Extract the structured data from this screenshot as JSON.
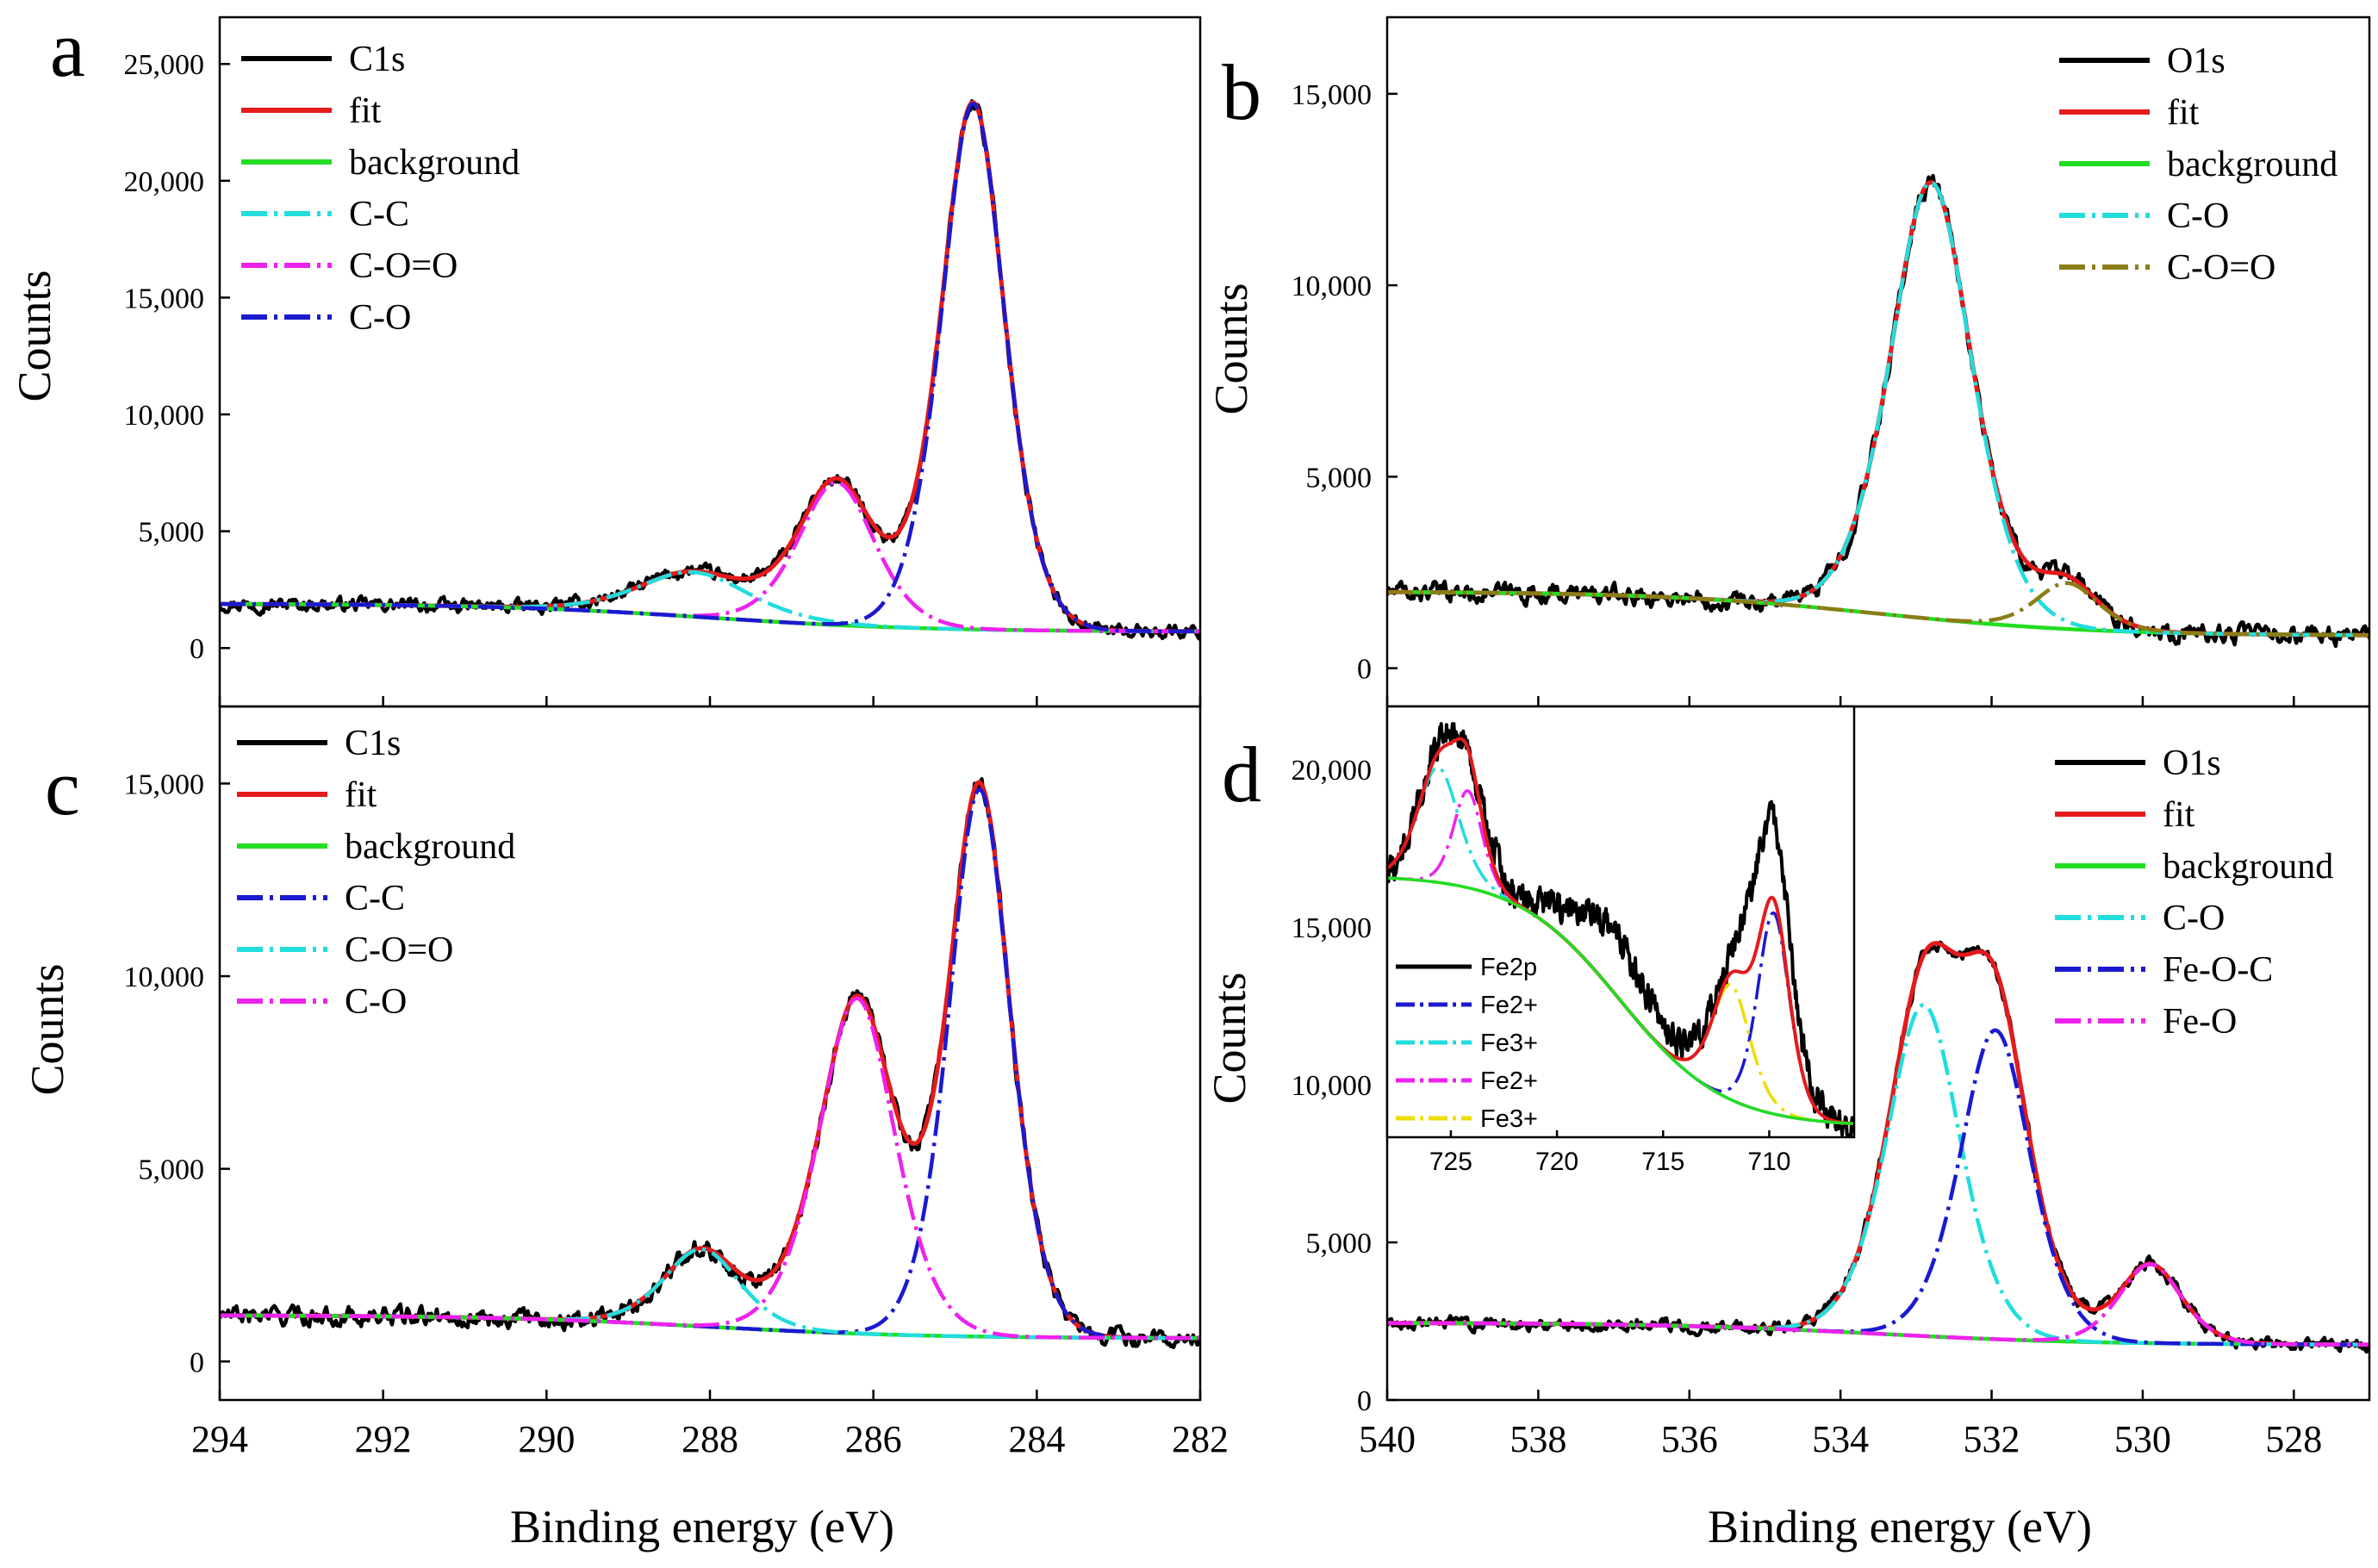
{
  "figure": {
    "x_axis_label": "Binding energy (eV)",
    "y_axis_label": "Counts"
  },
  "chart_data": [
    {
      "panel": "a",
      "type": "line",
      "xlabel": "",
      "ylabel": "Counts",
      "xlim": [
        294,
        282
      ],
      "ylim": [
        -2500,
        27000
      ],
      "x_ticks": [
        294,
        292,
        290,
        288,
        286,
        284,
        282
      ],
      "y_ticks": [
        0,
        5000,
        10000,
        15000,
        20000,
        25000
      ],
      "y_tick_labels": [
        "0",
        "5,000",
        "10,000",
        "15,000",
        "20,000",
        "25,000"
      ],
      "legend_position": "top-left",
      "series": [
        {
          "name": "C1s",
          "color": "#000000",
          "dash": "solid",
          "kind": "data",
          "base": [
            294,
            1900,
            282,
            700
          ],
          "noise": 280,
          "peaks": [
            [
              284.78,
              22500,
              0.52
            ],
            [
              286.45,
              6100,
              0.62
            ],
            [
              288.2,
              1900,
              0.9
            ]
          ]
        },
        {
          "name": "fit",
          "color": "#e41a1c",
          "dash": "solid",
          "kind": "fit",
          "base": [
            294,
            1900,
            282,
            700
          ],
          "peaks": [
            [
              284.78,
              22500,
              0.52
            ],
            [
              286.45,
              6100,
              0.62
            ],
            [
              288.2,
              1900,
              0.9
            ]
          ]
        },
        {
          "name": "background",
          "color": "#22dd22",
          "dash": "solid",
          "kind": "bg",
          "base": [
            294,
            1900,
            282,
            700
          ],
          "peaks": []
        },
        {
          "name": "C-C",
          "color": "#22dddd",
          "dash": "dashdot",
          "kind": "comp",
          "base": [
            294,
            1900,
            282,
            700
          ],
          "peaks": [
            [
              288.2,
              1900,
              0.9
            ]
          ]
        },
        {
          "name": "C-O=O",
          "color": "#ee22ee",
          "dash": "dashdot",
          "kind": "comp",
          "base": [
            294,
            1900,
            282,
            700
          ],
          "peaks": [
            [
              286.45,
              6100,
              0.62
            ]
          ]
        },
        {
          "name": "C-O",
          "color": "#1a1ad0",
          "dash": "dashdot",
          "kind": "comp",
          "base": [
            294,
            1900,
            282,
            700
          ],
          "peaks": [
            [
              284.78,
              22500,
              0.52
            ]
          ]
        }
      ]
    },
    {
      "panel": "b",
      "type": "line",
      "xlabel": "",
      "ylabel": "Counts",
      "xlim": [
        540,
        527
      ],
      "ylim": [
        -1000,
        17000
      ],
      "x_ticks": [
        540,
        538,
        536,
        534,
        532,
        530,
        528
      ],
      "y_ticks": [
        0,
        5000,
        10000,
        15000
      ],
      "y_tick_labels": [
        "0",
        "5,000",
        "10,000",
        "15,000"
      ],
      "legend_position": "top-right",
      "series": [
        {
          "name": "O1s",
          "color": "#000000",
          "dash": "solid",
          "kind": "data",
          "base": [
            540,
            2000,
            527,
            850
          ],
          "noise": 240,
          "peaks": [
            [
              532.8,
              11400,
              0.72
            ],
            [
              531.0,
              1200,
              0.55
            ]
          ]
        },
        {
          "name": "fit",
          "color": "#e41a1c",
          "dash": "solid",
          "kind": "fit",
          "base": [
            540,
            2000,
            527,
            850
          ],
          "peaks": [
            [
              532.8,
              11400,
              0.72
            ],
            [
              531.0,
              1200,
              0.55
            ]
          ]
        },
        {
          "name": "background",
          "color": "#22dd22",
          "dash": "solid",
          "kind": "bg",
          "base": [
            540,
            2000,
            527,
            850
          ],
          "peaks": []
        },
        {
          "name": "C-O",
          "color": "#22dddd",
          "dash": "dashdot",
          "kind": "comp",
          "base": [
            540,
            2000,
            527,
            850
          ],
          "peaks": [
            [
              532.8,
              11400,
              0.72
            ]
          ]
        },
        {
          "name": "C-O=O",
          "color": "#8b7d17",
          "dash": "dashdot",
          "kind": "comp",
          "base": [
            540,
            2000,
            527,
            850
          ],
          "peaks": [
            [
              531.0,
              1200,
              0.55
            ]
          ]
        }
      ]
    },
    {
      "panel": "c",
      "type": "line",
      "xlabel": "Binding energy (eV)",
      "ylabel": "Counts",
      "xlim": [
        294,
        282
      ],
      "ylim": [
        -1000,
        17000
      ],
      "x_ticks": [
        294,
        292,
        290,
        288,
        286,
        284,
        282
      ],
      "y_ticks": [
        0,
        5000,
        10000,
        15000
      ],
      "y_tick_labels": [
        "0",
        "5,000",
        "10,000",
        "15,000"
      ],
      "legend_position": "top-left",
      "series": [
        {
          "name": "C1s",
          "color": "#000000",
          "dash": "solid",
          "kind": "data",
          "base": [
            294,
            1200,
            282,
            600
          ],
          "noise": 230,
          "peaks": [
            [
              284.7,
              14200,
              0.5
            ],
            [
              286.2,
              8700,
              0.62
            ],
            [
              288.1,
              2000,
              0.62
            ]
          ]
        },
        {
          "name": "fit",
          "color": "#e41a1c",
          "dash": "solid",
          "kind": "fit",
          "base": [
            294,
            1200,
            282,
            600
          ],
          "peaks": [
            [
              284.7,
              14200,
              0.5
            ],
            [
              286.2,
              8700,
              0.62
            ],
            [
              288.1,
              2000,
              0.62
            ]
          ]
        },
        {
          "name": "background",
          "color": "#22dd22",
          "dash": "solid",
          "kind": "bg",
          "base": [
            294,
            1200,
            282,
            600
          ],
          "peaks": []
        },
        {
          "name": "C-C",
          "color": "#1a1ad0",
          "dash": "dashdot",
          "kind": "comp",
          "base": [
            294,
            1200,
            282,
            600
          ],
          "peaks": [
            [
              284.7,
              14200,
              0.5
            ]
          ]
        },
        {
          "name": "C-O=O",
          "color": "#22dddd",
          "dash": "dashdot",
          "kind": "comp",
          "base": [
            294,
            1200,
            282,
            600
          ],
          "peaks": [
            [
              288.1,
              2000,
              0.62
            ]
          ]
        },
        {
          "name": "C-O",
          "color": "#ee22ee",
          "dash": "dashdot",
          "kind": "comp",
          "base": [
            294,
            1200,
            282,
            600
          ],
          "peaks": [
            [
              286.2,
              8700,
              0.62
            ]
          ]
        }
      ]
    },
    {
      "panel": "d",
      "type": "line",
      "xlabel": "Binding energy (eV)",
      "ylabel": "Counts",
      "xlim": [
        540,
        527
      ],
      "ylim": [
        0,
        22000
      ],
      "x_ticks": [
        540,
        538,
        536,
        534,
        532,
        530,
        528
      ],
      "y_ticks": [
        0,
        5000,
        10000,
        15000,
        20000
      ],
      "y_tick_labels": [
        "0",
        "5,000",
        "10,000",
        "15,000",
        "20,000"
      ],
      "legend_position": "top-right",
      "series": [
        {
          "name": "O1s",
          "color": "#000000",
          "dash": "solid",
          "kind": "data",
          "base": [
            540,
            2450,
            527,
            1750
          ],
          "noise": 200,
          "peaks": [
            [
              532.9,
              10500,
              0.65
            ],
            [
              531.95,
              9800,
              0.62
            ],
            [
              529.9,
              2500,
              0.55
            ]
          ]
        },
        {
          "name": "fit",
          "color": "#e41a1c",
          "dash": "solid",
          "kind": "fit",
          "base": [
            540,
            2450,
            527,
            1750
          ],
          "peaks": [
            [
              532.9,
              10500,
              0.65
            ],
            [
              531.95,
              9800,
              0.62
            ],
            [
              529.9,
              2500,
              0.55
            ]
          ]
        },
        {
          "name": "background",
          "color": "#22dd22",
          "dash": "solid",
          "kind": "bg",
          "base": [
            540,
            2450,
            527,
            1750
          ],
          "peaks": []
        },
        {
          "name": "C-O",
          "color": "#22dddd",
          "dash": "dashdot",
          "kind": "comp",
          "base": [
            540,
            2450,
            527,
            1750
          ],
          "peaks": [
            [
              532.9,
              10500,
              0.65
            ]
          ]
        },
        {
          "name": "Fe-O-C",
          "color": "#1a1ad0",
          "dash": "dashdot",
          "kind": "comp",
          "base": [
            540,
            2450,
            527,
            1750
          ],
          "peaks": [
            [
              531.95,
              9800,
              0.62
            ]
          ]
        },
        {
          "name": "Fe-O",
          "color": "#ee22ee",
          "dash": "dashdot",
          "kind": "comp",
          "base": [
            540,
            2450,
            527,
            1750
          ],
          "peaks": [
            [
              529.9,
              2500,
              0.55
            ]
          ]
        }
      ]
    },
    {
      "panel": "d-inset",
      "type": "line",
      "title": "",
      "xlim": [
        728,
        706
      ],
      "ylim": [
        10000,
        22000
      ],
      "x_ticks": [
        725,
        720,
        715,
        710
      ],
      "legend_position": "bottom-left",
      "series": [
        {
          "name": "Fe2p",
          "color": "#000000",
          "dash": "solid",
          "kind": "data",
          "base": [
            728,
            17300,
            706,
            10300
          ],
          "noise": 420,
          "peaks": [
            [
              709.8,
              7000,
              1.1
            ],
            [
              711.5,
              3500,
              1.5
            ],
            [
              724.3,
              3000,
              1.2
            ],
            [
              725.7,
              2900,
              1.2
            ],
            [
              717.5,
              1700,
              2.5
            ]
          ]
        },
        {
          "name": "Fe2+",
          "color": "#1a1ad0",
          "dash": "dashdot",
          "kind": "comp",
          "base": [
            728,
            17300,
            706,
            10300
          ],
          "peaks": [
            [
              709.8,
              5600,
              1.0
            ]
          ]
        },
        {
          "name": "Fe3+",
          "color": "#22dddd",
          "dash": "dashdot",
          "kind": "comp",
          "base": [
            728,
            17300,
            706,
            10300
          ],
          "peaks": [
            [
              725.6,
              3200,
              1.3
            ]
          ]
        },
        {
          "name": "Fe2+",
          "color": "#ee22ee",
          "dash": "dashdot",
          "kind": "comp",
          "base": [
            728,
            17300,
            706,
            10300
          ],
          "peaks": [
            [
              724.2,
              2700,
              0.9
            ]
          ]
        },
        {
          "name": "Fe3+",
          "color": "#eedd00",
          "dash": "dashdot",
          "kind": "comp",
          "base": [
            728,
            17300,
            706,
            10300
          ],
          "peaks": [
            [
              711.8,
              3200,
              1.2
            ]
          ]
        },
        {
          "name": "fit",
          "color": "#e41a1c",
          "dash": "solid",
          "kind": "fit",
          "legend": false,
          "base": [
            728,
            17300,
            706,
            10300
          ],
          "peaks": [
            [
              709.8,
              5600,
              1.0
            ],
            [
              711.8,
              3200,
              1.2
            ],
            [
              725.6,
              3200,
              1.3
            ],
            [
              724.2,
              2700,
              0.9
            ]
          ]
        },
        {
          "name": "background",
          "color": "#22dd22",
          "dash": "solid",
          "kind": "bg",
          "legend": false,
          "base": [
            728,
            17300,
            706,
            10300
          ],
          "peaks": []
        }
      ]
    }
  ]
}
